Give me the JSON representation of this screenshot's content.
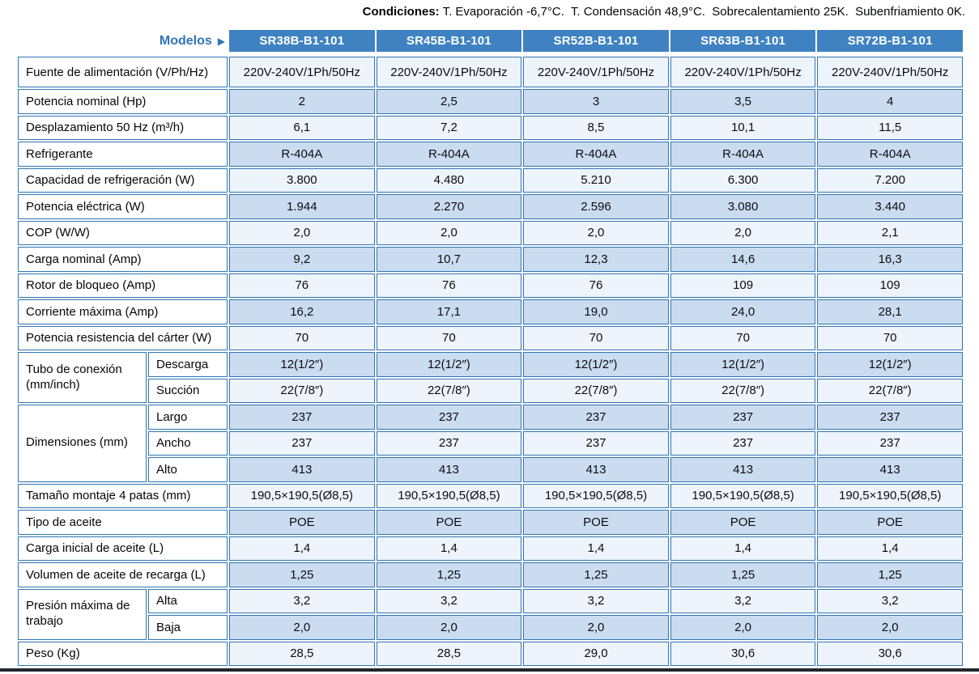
{
  "conditions": {
    "label": "Condiciones:",
    "text": " T. Evaporación -6,7°C.  T. Condensación 48,9°C.  Sobrecalentamiento 25K.  Subenfriamiento 0K."
  },
  "header": {
    "models_label": "Modelos",
    "arrow": "▶",
    "models": [
      "SR38B-B1-101",
      "SR45B-B1-101",
      "SR52B-B1-101",
      "SR63B-B1-101",
      "SR72B-B1-101"
    ]
  },
  "table": {
    "rows": [
      {
        "type": "simple",
        "tall": true,
        "label": "Fuente de alimentación (V/Ph/Hz)",
        "shade": "pale",
        "values": [
          "220V-240V/1Ph/50Hz",
          "220V-240V/1Ph/50Hz",
          "220V-240V/1Ph/50Hz",
          "220V-240V/1Ph/50Hz",
          "220V-240V/1Ph/50Hz"
        ]
      },
      {
        "type": "simple",
        "label": "Potencia nominal (Hp)",
        "shade": "blue",
        "values": [
          "2",
          "2,5",
          "3",
          "3,5",
          "4"
        ]
      },
      {
        "type": "simple",
        "label": "Desplazamiento 50 Hz (m³/h)",
        "shade": "pale",
        "values": [
          "6,1",
          "7,2",
          "8,5",
          "10,1",
          "11,5"
        ]
      },
      {
        "type": "simple",
        "label": "Refrigerante",
        "shade": "blue",
        "values": [
          "R-404A",
          "R-404A",
          "R-404A",
          "R-404A",
          "R-404A"
        ]
      },
      {
        "type": "simple",
        "label": "Capacidad de refrigeración (W)",
        "shade": "pale",
        "values": [
          "3.800",
          "4.480",
          "5.210",
          "6.300",
          "7.200"
        ]
      },
      {
        "type": "simple",
        "label": "Potencia eléctrica (W)",
        "shade": "blue",
        "values": [
          "1.944",
          "2.270",
          "2.596",
          "3.080",
          "3.440"
        ]
      },
      {
        "type": "simple",
        "label": "COP (W/W)",
        "shade": "pale",
        "values": [
          "2,0",
          "2,0",
          "2,0",
          "2,0",
          "2,1"
        ]
      },
      {
        "type": "simple",
        "label": "Carga nominal (Amp)",
        "shade": "blue",
        "values": [
          "9,2",
          "10,7",
          "12,3",
          "14,6",
          "16,3"
        ]
      },
      {
        "type": "simple",
        "label": "Rotor de bloqueo (Amp)",
        "shade": "pale",
        "values": [
          "76",
          "76",
          "76",
          "109",
          "109"
        ]
      },
      {
        "type": "simple",
        "label": "Corriente máxima (Amp)",
        "shade": "blue",
        "values": [
          "16,2",
          "17,1",
          "19,0",
          "24,0",
          "28,1"
        ]
      },
      {
        "type": "simple",
        "label": "Potencia resistencia del cárter (W)",
        "shade": "pale",
        "values": [
          "70",
          "70",
          "70",
          "70",
          "70"
        ]
      },
      {
        "type": "group",
        "label": "Tubo de conexión (mm/inch)",
        "subrows": [
          {
            "sublabel": "Descarga",
            "shade": "blue",
            "values": [
              "12(1/2″)",
              "12(1/2″)",
              "12(1/2″)",
              "12(1/2″)",
              "12(1/2″)"
            ]
          },
          {
            "sublabel": "Succión",
            "shade": "pale",
            "values": [
              "22(7/8″)",
              "22(7/8″)",
              "22(7/8″)",
              "22(7/8″)",
              "22(7/8″)"
            ]
          }
        ]
      },
      {
        "type": "group",
        "label": "Dimensiones (mm)",
        "subrows": [
          {
            "sublabel": "Largo",
            "shade": "blue",
            "values": [
              "237",
              "237",
              "237",
              "237",
              "237"
            ]
          },
          {
            "sublabel": "Ancho",
            "shade": "pale",
            "values": [
              "237",
              "237",
              "237",
              "237",
              "237"
            ]
          },
          {
            "sublabel": "Alto",
            "shade": "blue",
            "values": [
              "413",
              "413",
              "413",
              "413",
              "413"
            ]
          }
        ]
      },
      {
        "type": "simple",
        "label": "Tamaño montaje 4 patas (mm)",
        "shade": "pale",
        "values": [
          "190,5×190,5(Ø8,5)",
          "190,5×190,5(Ø8,5)",
          "190,5×190,5(Ø8,5)",
          "190,5×190,5(Ø8,5)",
          "190,5×190,5(Ø8,5)"
        ]
      },
      {
        "type": "simple",
        "label": "Tipo de aceite",
        "shade": "blue",
        "values": [
          "POE",
          "POE",
          "POE",
          "POE",
          "POE"
        ]
      },
      {
        "type": "simple",
        "label": "Carga inicial de aceite (L)",
        "shade": "pale",
        "values": [
          "1,4",
          "1,4",
          "1,4",
          "1,4",
          "1,4"
        ]
      },
      {
        "type": "simple",
        "label": "Volumen de aceite de recarga (L)",
        "shade": "blue",
        "values": [
          "1,25",
          "1,25",
          "1,25",
          "1,25",
          "1,25"
        ]
      },
      {
        "type": "group",
        "label": "Presión máxima de trabajo",
        "subrows": [
          {
            "sublabel": "Alta",
            "shade": "pale",
            "values": [
              "3,2",
              "3,2",
              "3,2",
              "3,2",
              "3,2"
            ]
          },
          {
            "sublabel": "Baja",
            "shade": "blue",
            "values": [
              "2,0",
              "2,0",
              "2,0",
              "2,0",
              "2,0"
            ]
          }
        ]
      },
      {
        "type": "simple",
        "label": "Peso (Kg)",
        "shade": "pale",
        "values": [
          "28,5",
          "28,5",
          "29,0",
          "30,6",
          "30,6"
        ]
      }
    ]
  },
  "colors": {
    "header_bg": "#3f82c2",
    "header_text": "#ffffff",
    "models_text": "#2e75b5",
    "border": "#2e75b5",
    "cell_blue": "#cbdcf0",
    "cell_pale": "#eef4fb",
    "text": "#0e1116",
    "bottom_rule": "#23272f"
  }
}
